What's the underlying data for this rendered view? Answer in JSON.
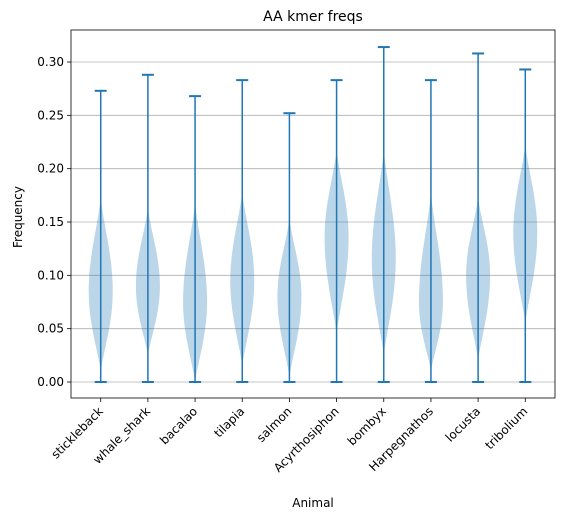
{
  "chart_data": {
    "type": "violin",
    "title": "AA kmer freqs",
    "xlabel": "Animal",
    "ylabel": "Frequency",
    "ylim": [
      -0.015,
      0.33
    ],
    "yticks": [
      "0.00",
      "0.05",
      "0.10",
      "0.15",
      "0.20",
      "0.25",
      "0.30"
    ],
    "grid": "horizontal",
    "colors": {
      "line": "#1f77b4",
      "body": "#1f77b4",
      "grid": "#b0b0b0"
    },
    "series": [
      {
        "category": "stickleback",
        "min": 0.0,
        "max": 0.273,
        "median": 0.085,
        "body_top": 0.175,
        "body_bottom": 0.01
      },
      {
        "category": "whale_shark",
        "min": 0.0,
        "max": 0.288,
        "median": 0.09,
        "body_top": 0.165,
        "body_bottom": 0.025
      },
      {
        "category": "bacalao",
        "min": 0.0,
        "max": 0.268,
        "median": 0.075,
        "body_top": 0.17,
        "body_bottom": 0.0
      },
      {
        "category": "tilapia",
        "min": 0.0,
        "max": 0.283,
        "median": 0.095,
        "body_top": 0.18,
        "body_bottom": 0.015
      },
      {
        "category": "salmon",
        "min": 0.0,
        "max": 0.252,
        "median": 0.08,
        "body_top": 0.155,
        "body_bottom": 0.005
      },
      {
        "category": "Acyrthosiphon",
        "min": 0.0,
        "max": 0.283,
        "median": 0.135,
        "body_top": 0.22,
        "body_bottom": 0.045
      },
      {
        "category": "bombyx",
        "min": 0.0,
        "max": 0.314,
        "median": 0.115,
        "body_top": 0.22,
        "body_bottom": 0.025
      },
      {
        "category": "Harpegnathos",
        "min": 0.0,
        "max": 0.283,
        "median": 0.075,
        "body_top": 0.18,
        "body_bottom": 0.01
      },
      {
        "category": "locusta",
        "min": 0.0,
        "max": 0.308,
        "median": 0.1,
        "body_top": 0.175,
        "body_bottom": 0.02
      },
      {
        "category": "tribolium",
        "min": 0.0,
        "max": 0.293,
        "median": 0.14,
        "body_top": 0.225,
        "body_bottom": 0.055
      }
    ]
  }
}
